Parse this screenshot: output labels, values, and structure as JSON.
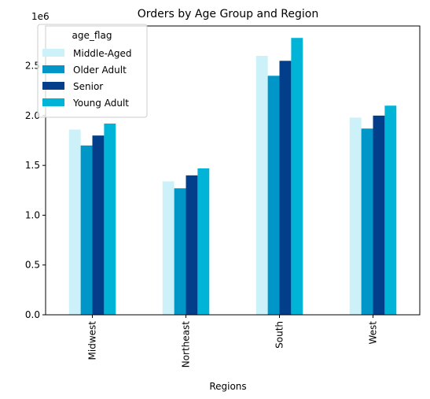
{
  "chart_data": {
    "type": "bar",
    "title": "Orders by Age Group and Region",
    "xlabel": "Regions",
    "ylabel": "",
    "y_offset_label": "1e6",
    "y_scale_factor": 1000000,
    "ylim": [
      0,
      2900000
    ],
    "yticks": [
      0,
      500000,
      1000000,
      1500000,
      2000000,
      2500000
    ],
    "ytick_labels": [
      "0.0",
      "0.5",
      "1.0",
      "1.5",
      "2.0",
      "2.5"
    ],
    "grid": false,
    "legend_position": "top-left",
    "legend_title": "age_flag",
    "categories": [
      "Midwest",
      "Northeast",
      "South",
      "West"
    ],
    "series": [
      {
        "name": "Middle-Aged",
        "color": "#ccf1f8",
        "values": [
          1860000,
          1340000,
          2600000,
          1980000
        ]
      },
      {
        "name": "Older Adult",
        "color": "#0096c7",
        "values": [
          1700000,
          1270000,
          2400000,
          1870000
        ]
      },
      {
        "name": "Senior",
        "color": "#023e8a",
        "values": [
          1800000,
          1400000,
          2550000,
          2000000
        ]
      },
      {
        "name": "Young Adult",
        "color": "#00b4d8",
        "values": [
          1920000,
          1470000,
          2780000,
          2100000
        ]
      }
    ]
  }
}
